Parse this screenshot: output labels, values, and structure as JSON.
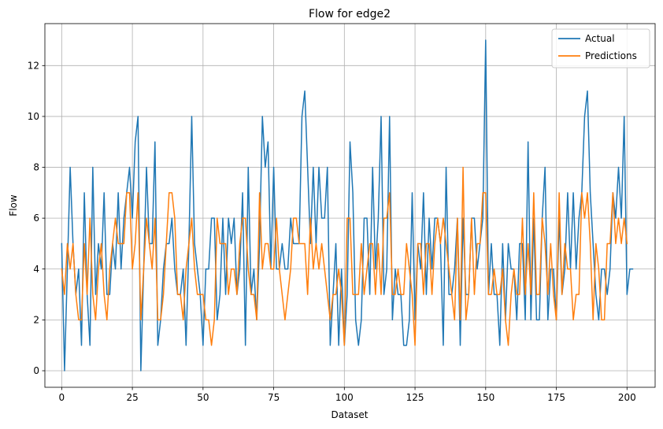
{
  "chart_data": {
    "type": "line",
    "title": "Flow for edge2",
    "xlabel": "Dataset",
    "ylabel": "Flow",
    "xlim": [
      -5.95,
      209.95
    ],
    "ylim": [
      -0.65,
      13.65
    ],
    "xticks": [
      0,
      25,
      50,
      75,
      100,
      125,
      150,
      175,
      200
    ],
    "yticks": [
      0,
      2,
      4,
      6,
      8,
      10,
      12
    ],
    "grid": true,
    "legend_position": "top-right",
    "series": [
      {
        "name": "Actual",
        "color": "#1f77b4",
        "values": [
          5,
          0,
          4,
          8,
          5,
          3,
          4,
          1,
          7,
          3,
          1,
          8,
          3,
          5,
          4,
          7,
          3,
          3,
          5,
          4,
          7,
          4,
          6,
          7,
          8,
          6,
          9,
          10,
          0,
          4,
          8,
          5,
          5,
          9,
          1,
          2,
          4,
          5,
          5,
          6,
          4,
          3,
          3,
          4,
          1,
          5,
          10,
          5,
          4,
          3,
          1,
          4,
          4,
          6,
          6,
          2,
          3,
          6,
          3,
          6,
          5,
          6,
          3,
          4,
          7,
          1,
          8,
          3,
          4,
          2,
          5,
          10,
          8,
          9,
          4,
          8,
          4,
          4,
          5,
          4,
          4,
          6,
          5,
          5,
          5,
          10,
          11,
          8,
          5,
          8,
          5,
          8,
          6,
          6,
          8,
          1,
          3,
          5,
          1,
          4,
          1,
          3,
          9,
          7,
          2,
          1,
          2,
          6,
          6,
          3,
          8,
          4,
          6,
          10,
          3,
          4,
          10,
          2,
          4,
          3,
          3,
          1,
          1,
          2,
          7,
          2,
          5,
          4,
          7,
          3,
          6,
          4,
          6,
          6,
          5,
          1,
          8,
          3,
          3,
          4,
          6,
          1,
          6,
          3,
          3,
          6,
          6,
          4,
          5,
          6,
          13,
          3,
          5,
          3,
          3,
          1,
          5,
          2,
          5,
          4,
          4,
          2,
          5,
          5,
          2,
          9,
          2,
          6,
          2,
          2,
          6,
          8,
          2,
          4,
          4,
          2,
          6,
          3,
          4,
          7,
          4,
          7,
          4,
          6,
          7,
          10,
          11,
          7,
          5,
          3,
          2,
          4,
          4,
          3,
          4,
          7,
          6,
          8,
          6,
          10,
          3,
          4,
          4
        ]
      },
      {
        "name": "Predictions",
        "color": "#ff7f0e",
        "values": [
          4,
          3,
          5,
          4,
          5,
          3,
          2,
          2,
          5,
          3,
          6,
          3,
          2,
          4,
          5,
          3,
          2,
          4,
          5,
          6,
          5,
          5,
          5,
          7,
          7,
          4,
          5,
          7,
          2,
          4,
          6,
          5,
          4,
          6,
          2,
          2,
          3,
          5,
          7,
          7,
          6,
          3,
          3,
          2,
          4,
          5,
          6,
          4,
          3,
          3,
          3,
          2,
          2,
          1,
          2,
          6,
          5,
          5,
          5,
          3,
          4,
          4,
          3,
          5,
          6,
          6,
          4,
          3,
          3,
          2,
          7,
          4,
          5,
          5,
          4,
          4,
          6,
          4,
          3,
          2,
          3,
          4,
          6,
          6,
          5,
          5,
          5,
          3,
          6,
          4,
          5,
          4,
          5,
          4,
          3,
          2,
          3,
          3,
          4,
          3,
          1,
          6,
          6,
          3,
          3,
          3,
          5,
          3,
          4,
          5,
          5,
          3,
          5,
          3,
          6,
          6,
          7,
          3,
          3,
          4,
          3,
          3,
          5,
          4,
          3,
          1,
          5,
          5,
          3,
          5,
          5,
          3,
          5,
          6,
          5,
          6,
          5,
          4,
          3,
          2,
          6,
          2,
          8,
          2,
          3,
          6,
          3,
          5,
          5,
          7,
          7,
          3,
          3,
          4,
          3,
          3,
          4,
          2,
          1,
          3,
          4,
          3,
          3,
          6,
          3,
          5,
          3,
          7,
          3,
          3,
          6,
          5,
          3,
          5,
          3,
          2,
          7,
          3,
          5,
          4,
          4,
          2,
          3,
          3,
          7,
          6,
          7,
          5,
          2,
          5,
          4,
          2,
          2,
          5,
          5,
          7,
          5,
          6,
          5,
          6,
          5
        ]
      }
    ]
  }
}
